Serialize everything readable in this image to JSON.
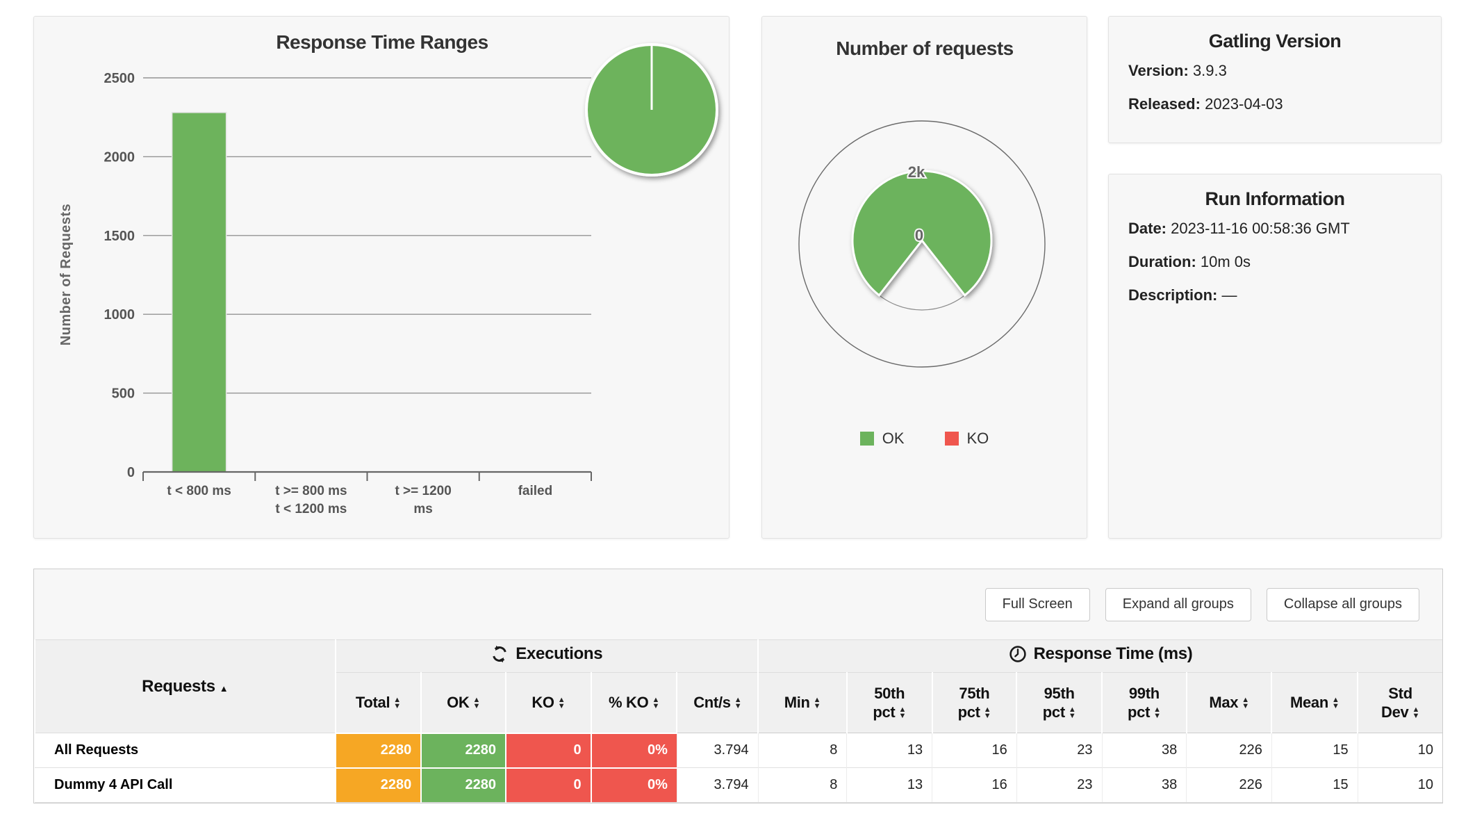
{
  "colors": {
    "ok_green": "#6cb35d",
    "ko_red": "#ef564e",
    "total_orange": "#f6a724",
    "bar_green": "#6db35c",
    "grid_gray": "#949494",
    "axis_gray": "#666666"
  },
  "chart_data": [
    {
      "type": "bar",
      "title": "Response Time Ranges",
      "xlabel": "",
      "ylabel": "Number of Requests",
      "categories": [
        "t < 800 ms",
        "t >= 800 ms\nt < 1200 ms",
        "t >= 1200\nms",
        "failed"
      ],
      "values": [
        2280,
        0,
        0,
        0
      ],
      "ylim": [
        0,
        2500
      ],
      "ytick_step": 500,
      "grid": true,
      "bar_color": "#6db35c",
      "legend_position": "none",
      "overlay_pie": {
        "type": "pie",
        "note": "mini pie at top-right of panel, single full slice",
        "slices": [
          {
            "label": "t < 800 ms",
            "value": 2280
          },
          {
            "label": "t >= 800 ms t < 1200 ms",
            "value": 0
          },
          {
            "label": "t >= 1200 ms",
            "value": 0
          },
          {
            "label": "failed",
            "value": 0
          }
        ],
        "color": "#6db35c"
      }
    },
    {
      "type": "pie",
      "title": "Number of requests",
      "series": [
        {
          "name": "OK",
          "value": 2280,
          "color": "#6cb35d"
        },
        {
          "name": "KO",
          "value": 0,
          "color": "#ef564e"
        }
      ],
      "radial_axis_min_label": "0",
      "radial_axis_max_label": "2k",
      "legend_position": "bottom"
    }
  ],
  "gatling_version": {
    "title": "Gatling Version",
    "fields": [
      {
        "label": "Version:",
        "value": "3.9.3"
      },
      {
        "label": "Released:",
        "value": "2023-04-03"
      }
    ]
  },
  "run_information": {
    "title": "Run Information",
    "fields": [
      {
        "label": "Date:",
        "value": "2023-11-16 00:58:36 GMT"
      },
      {
        "label": "Duration:",
        "value": "10m 0s"
      },
      {
        "label": "Description:",
        "value": "—"
      }
    ]
  },
  "toolbar": {
    "buttons": [
      "Full Screen",
      "Expand all groups",
      "Collapse all groups"
    ]
  },
  "stats_table": {
    "requests_header": "Requests",
    "sort_indicator": "▲",
    "groups": [
      {
        "label": "Executions"
      },
      {
        "label": "Response Time (ms)"
      }
    ],
    "columns": [
      "Total",
      "OK",
      "KO",
      "% KO",
      "Cnt/s",
      "Min",
      "50th\npct",
      "75th\npct",
      "95th\npct",
      "99th\npct",
      "Max",
      "Mean",
      "Std\nDev"
    ],
    "rows": [
      {
        "name": "All Requests",
        "values": [
          "2280",
          "2280",
          "0",
          "0%",
          "3.794",
          "8",
          "13",
          "16",
          "23",
          "38",
          "226",
          "15",
          "10"
        ]
      },
      {
        "name": "Dummy 4 API Call",
        "values": [
          "2280",
          "2280",
          "0",
          "0%",
          "3.794",
          "8",
          "13",
          "16",
          "23",
          "38",
          "226",
          "15",
          "10"
        ]
      }
    ]
  }
}
